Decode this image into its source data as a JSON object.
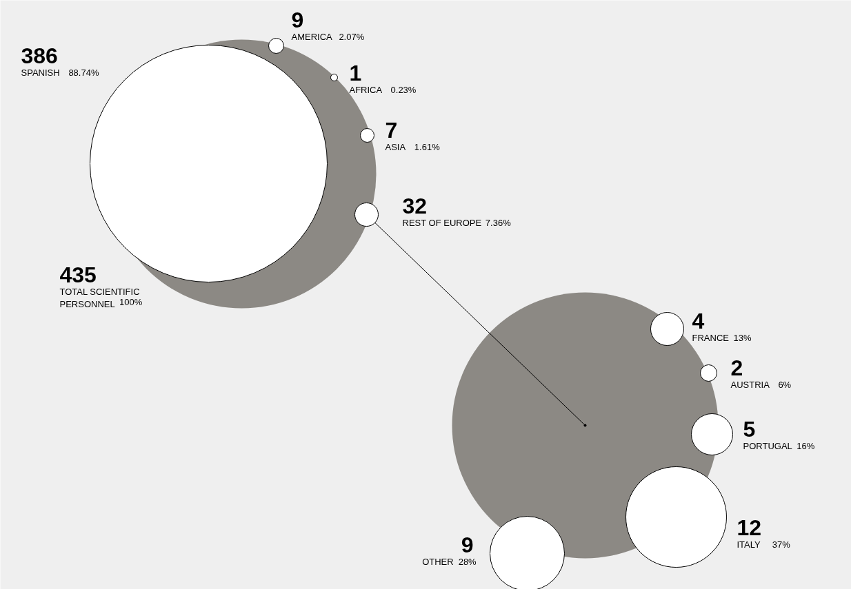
{
  "chart_data": {
    "type": "other",
    "categories": [
      "TOTAL SCIENTIFIC PERSONNEL",
      "SPANISH",
      "AMERICA",
      "AFRICA",
      "ASIA",
      "REST OF EUROPE",
      "FRANCE",
      "AUSTRIA",
      "PORTUGAL",
      "ITALY",
      "OTHER"
    ],
    "series": [
      {
        "values": [
          435,
          386,
          9,
          1,
          7,
          32,
          4,
          2,
          5,
          12,
          9
        ]
      },
      {
        "values": [
          100,
          88.74,
          2.07,
          0.23,
          1.61,
          7.36,
          13,
          6,
          16,
          37,
          28
        ],
        "value_labels": [
          "100%",
          "88.74%",
          "2.07%",
          "0.23%",
          "1.61%",
          "7.36%",
          "13%",
          "6%",
          "16%",
          "37%",
          "28%"
        ]
      }
    ],
    "data_labels": true,
    "color": "#8c8984"
  }
}
